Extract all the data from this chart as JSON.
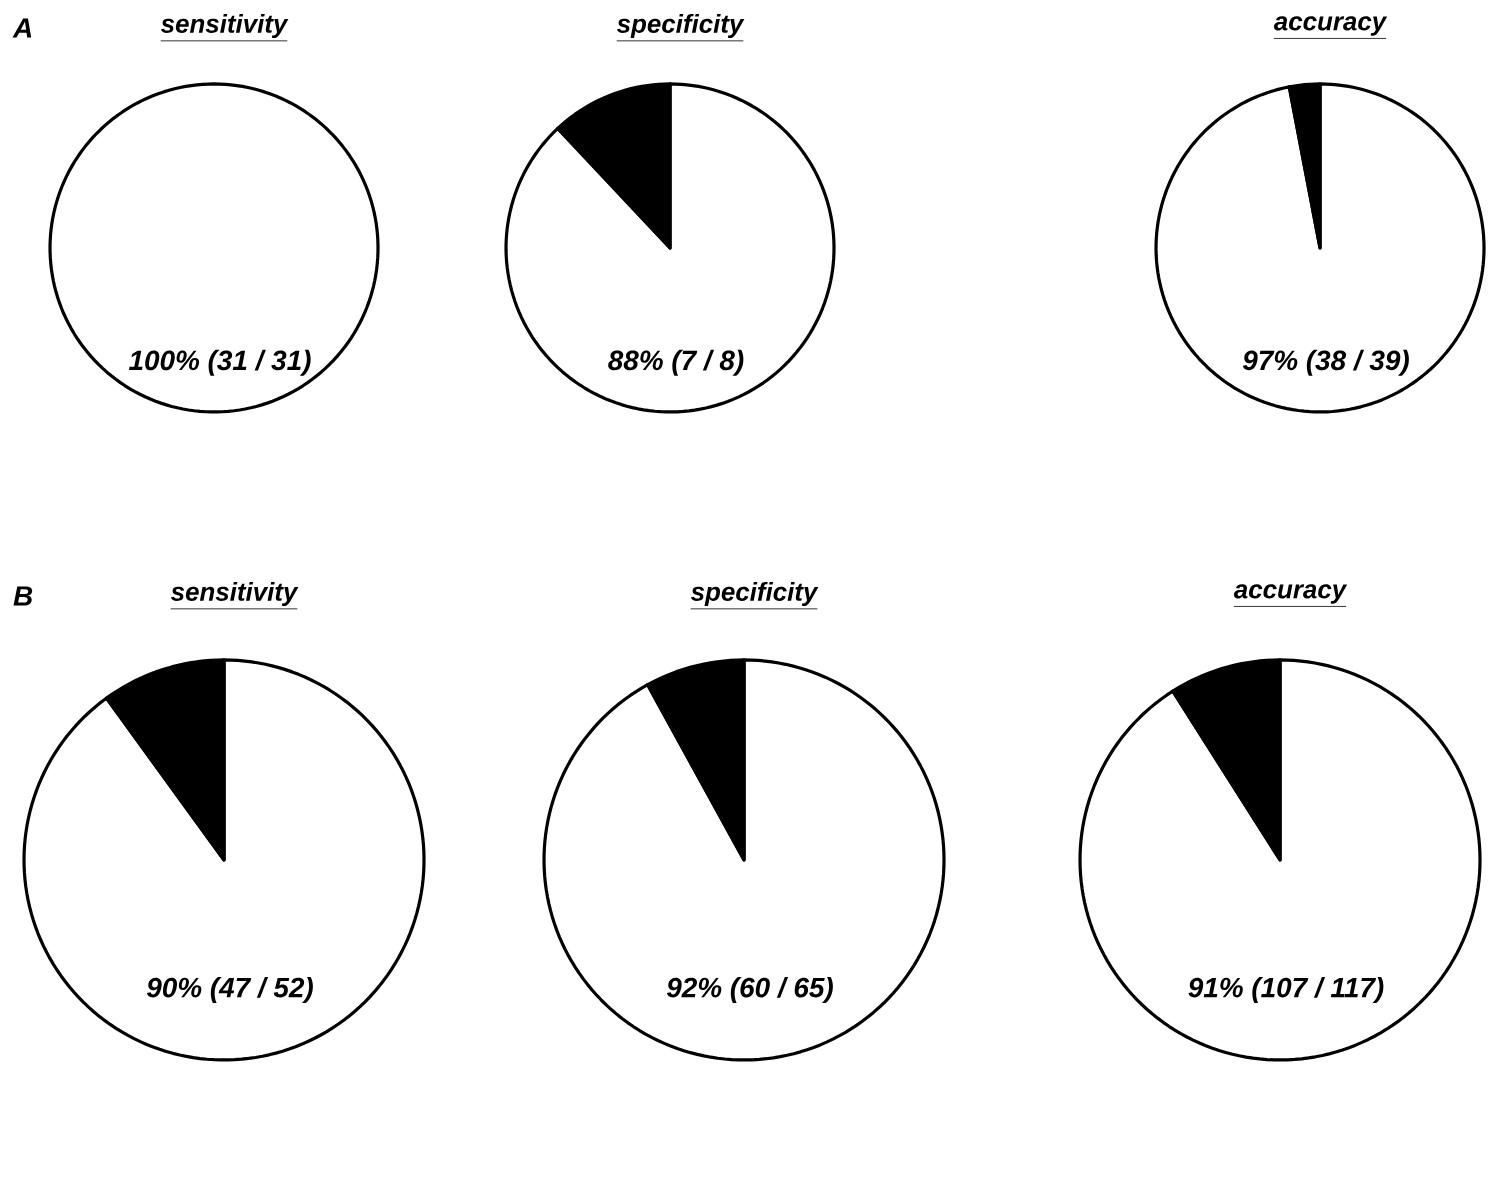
{
  "chart_data": [
    {
      "type": "pie",
      "title": "sensitivity",
      "categories": [
        null
      ],
      "values": [
        100
      ],
      "colors": [
        "#ffffff"
      ],
      "annotations": [
        "A",
        "100% (31 / 31)"
      ]
    },
    {
      "type": "pie",
      "title": "specificity",
      "categories": [
        null,
        null
      ],
      "values": [
        88,
        12
      ],
      "colors": [
        "#ffffff",
        "#000000"
      ],
      "annotations": [
        "88% (7 / 8)"
      ]
    },
    {
      "type": "pie",
      "title": "accuracy",
      "categories": [
        null,
        null
      ],
      "values": [
        97,
        3
      ],
      "colors": [
        "#ffffff",
        "#000000"
      ],
      "annotations": [
        "97% (38 / 39)"
      ]
    },
    {
      "type": "pie",
      "title": "sensitivity",
      "categories": [
        null,
        null
      ],
      "values": [
        90,
        10
      ],
      "colors": [
        "#ffffff",
        "#000000"
      ],
      "annotations": [
        "B",
        "90% (47 / 52)"
      ]
    },
    {
      "type": "pie",
      "title": "specificity",
      "categories": [
        null,
        null
      ],
      "values": [
        92,
        8
      ],
      "colors": [
        "#ffffff",
        "#000000"
      ],
      "annotations": [
        "92% (60 / 65)"
      ]
    },
    {
      "type": "pie",
      "title": "accuracy",
      "categories": [
        null,
        null
      ],
      "values": [
        91,
        9
      ],
      "colors": [
        "#ffffff",
        "#000000"
      ],
      "annotations": [
        "91% (107 / 117)"
      ]
    }
  ]
}
